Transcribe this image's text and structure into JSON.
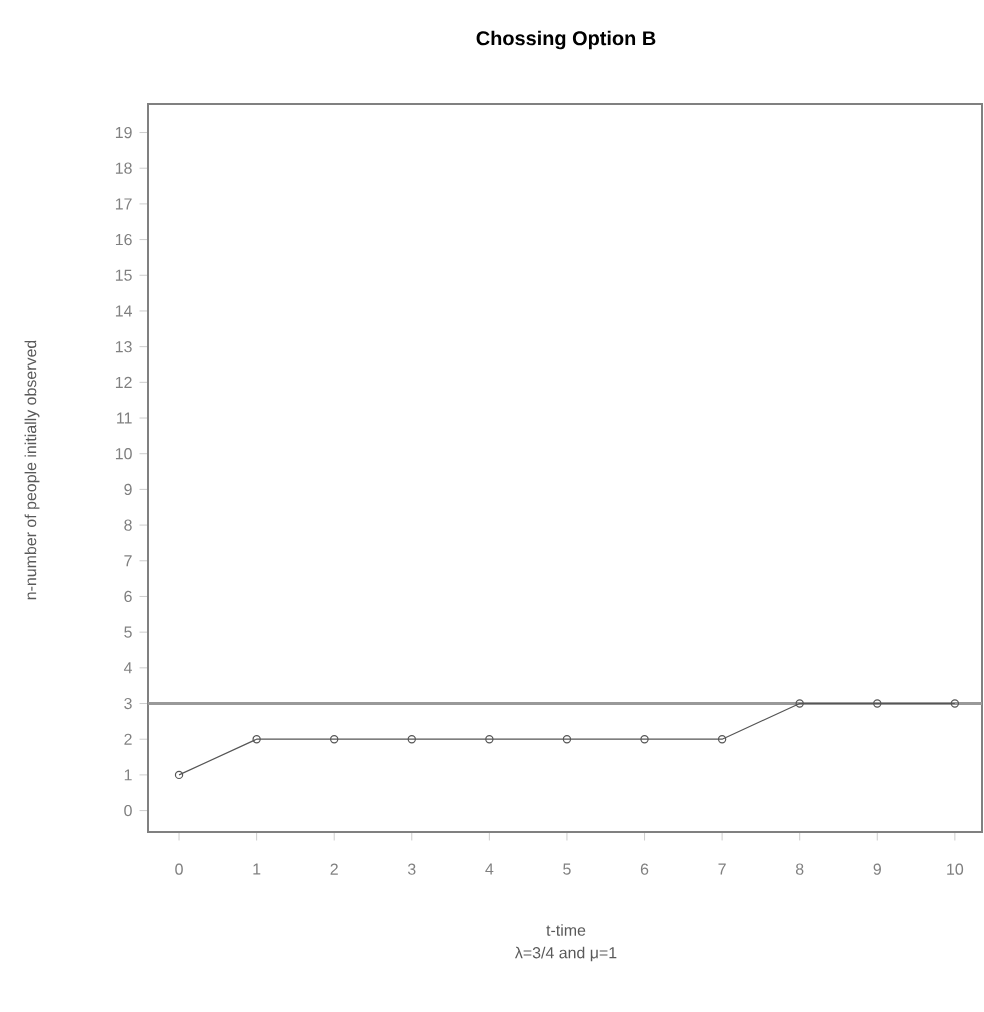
{
  "chart_data": {
    "type": "line",
    "title": "Chossing Option B",
    "xlabel": "t-time",
    "ylabel": "n-number of people initially observed",
    "annotations": [
      "λ=3/4 and μ=1"
    ],
    "x": [
      0,
      1,
      2,
      3,
      4,
      5,
      6,
      7,
      8,
      9,
      10
    ],
    "series": [
      {
        "color": "#555555",
        "values": [
          1,
          2,
          2,
          2,
          2,
          2,
          2,
          2,
          3,
          3,
          3
        ]
      }
    ],
    "xlim": [
      -0.4,
      10.35
    ],
    "ylim": [
      -0.6,
      19.8
    ],
    "xticks": [
      0,
      1,
      2,
      3,
      4,
      5,
      6,
      7,
      8,
      9,
      10
    ],
    "yticks": [
      0,
      1,
      2,
      3,
      4,
      5,
      6,
      7,
      8,
      9,
      10,
      11,
      12,
      13,
      14,
      15,
      16,
      17,
      18,
      19
    ],
    "ref_lines": [
      {
        "axis": "y",
        "value": 3,
        "color": "#999999"
      }
    ],
    "marker": "circle",
    "line_style": "solid"
  }
}
